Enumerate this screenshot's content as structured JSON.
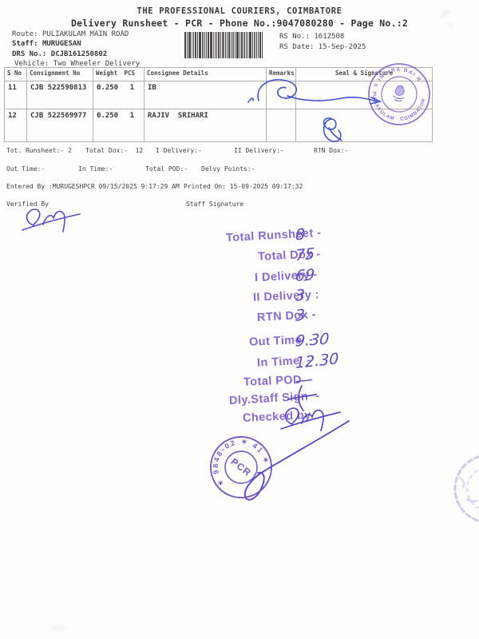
{
  "header": {
    "title": "THE PROFESSIONAL COURIERS, COIMBATORE",
    "subtitle": "Delivery Runsheet - PCR - Phone No.:9047080280 - Page No.:2"
  },
  "meta": {
    "route_label": "Route:",
    "route_value": "PULIAKULAM MAIN ROAD",
    "staff_label": "Staff:",
    "staff_value": "MURUGESAN",
    "drs_label": "DRS No.:",
    "drs_value": "DCJB161250802",
    "vehicle_label": "Vehicle:",
    "vehicle_value": "Two Wheeler Delivery",
    "rs_no_label": "RS No.:",
    "rs_no_value": "1612508",
    "rs_date_label": "RS Date:",
    "rs_date_value": "15-Sep-2025"
  },
  "table": {
    "headers": {
      "s_no": "S No",
      "consignment": "Consignment No",
      "weight": "Weight",
      "pcs": "PCS",
      "consignee": "Consignee Details",
      "remarks": "Remarks",
      "seal": "Seal & Signature"
    },
    "rows": [
      {
        "s_no": "11",
        "consignment": "CJB 522590813",
        "weight": "0.250",
        "pcs": "1",
        "consignee": "IB",
        "remarks": ""
      },
      {
        "s_no": "12",
        "consignment": "CJB 522569977",
        "weight": "0.250",
        "pcs": "1",
        "consignee": "RAJIV  SRIHARI",
        "remarks": ""
      }
    ]
  },
  "summary": {
    "tot_runsheet": "Tot. Runsheet:- 2",
    "total_dox": "Total Dox:-  12",
    "i_delivery": "I Delivery:-",
    "ii_delivery": "II Delivery:-",
    "rtn_dox": "RTN Dox:-",
    "out_time": "Out Time:-",
    "in_time": "In Time:-",
    "total_pod": "Total POD:-",
    "delvy_points": "Delvy Points:-",
    "entered_by": "Entered By :MURUGESHPCR 09/15/2025 9:17:29 AM",
    "printed_on": "Printed On: 15-09-2025 09:17:32",
    "verified_by": "Verified By",
    "staff_signature": "Staff Signature"
  },
  "handwritten": {
    "items": [
      {
        "label": "Total Runsheet -",
        "value": "8"
      },
      {
        "label": "Total Dox -",
        "value": "75"
      },
      {
        "label": "I Delivery -",
        "value": "69"
      },
      {
        "label": "II Delivery :",
        "value": "3"
      },
      {
        "label": "RTN Dox -",
        "value": "3"
      },
      {
        "label": "Out Time  -",
        "value": "9.30"
      },
      {
        "label": "In Time  -",
        "value": "12.30"
      },
      {
        "label": "Total POD  -",
        "value": "—"
      },
      {
        "label": "Dly.Staff Sign  -",
        "value": ""
      },
      {
        "label": "Checked by",
        "value": ""
      }
    ],
    "ink_color": "#5b49c6",
    "stamp_label_color": "#7d5dd2"
  },
  "stamps": {
    "branch_seal": {
      "arc_top": "S INDIRA BAI R",
      "arc_bottom": "PULIAKULAM · COIMBATORE",
      "color": "#7c5ccd"
    },
    "pcr_stamp": {
      "center_text": "PCR",
      "ring_text": "✶ 9848-02 ✶ 41 ✶",
      "color": "#6a4cc4"
    }
  }
}
